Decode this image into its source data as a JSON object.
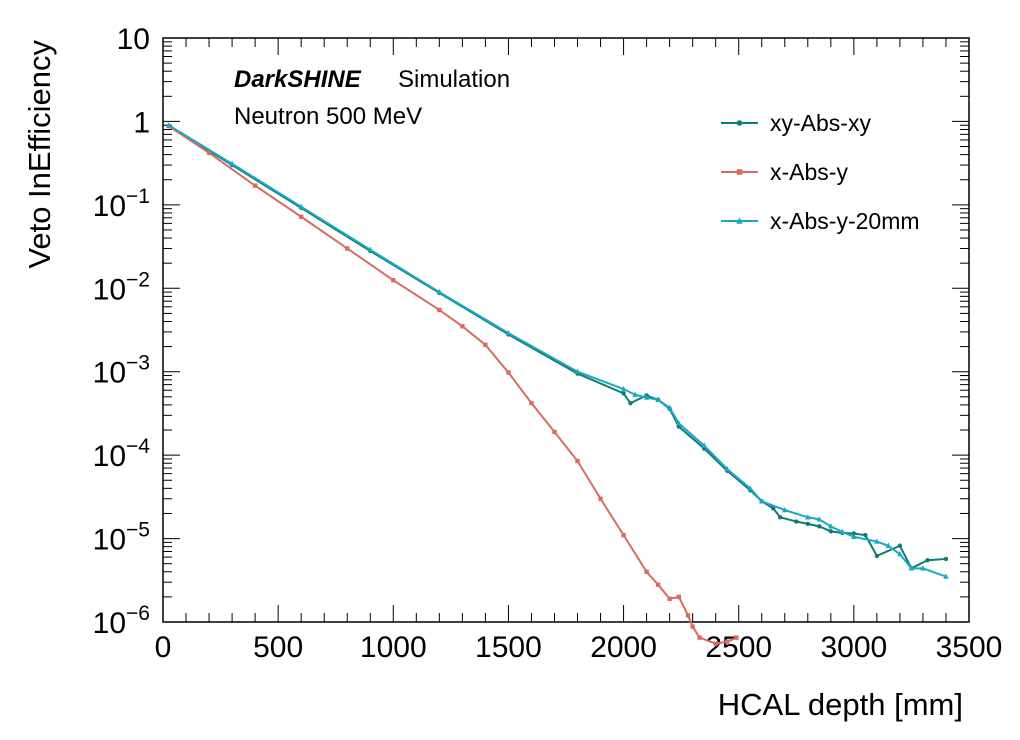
{
  "chart_data": {
    "type": "line",
    "xlabel": "HCAL depth [mm]",
    "ylabel": "Veto InEfficiency",
    "xlim": [
      0,
      3500
    ],
    "ylim": [
      1e-06,
      10
    ],
    "yscale": "log",
    "grid": false,
    "legend_position": "top-right",
    "x_ticks": [
      "0",
      "500",
      "1000",
      "1500",
      "2000",
      "2500",
      "3000",
      "3500"
    ],
    "y_ticks": [
      {
        "base": "10",
        "exp": "",
        "value": 10
      },
      {
        "base": "1",
        "exp": "",
        "value": 1
      },
      {
        "base": "10",
        "exp": "−1",
        "value": 0.1
      },
      {
        "base": "10",
        "exp": "−2",
        "value": 0.01
      },
      {
        "base": "10",
        "exp": "−3",
        "value": 0.001
      },
      {
        "base": "10",
        "exp": "−4",
        "value": 0.0001
      },
      {
        "base": "10",
        "exp": "−5",
        "value": 1e-05
      },
      {
        "base": "10",
        "exp": "−6",
        "value": 1e-06
      }
    ],
    "annotations": {
      "brand": "DarkSHINE",
      "brand_suffix": "Simulation",
      "subtitle": "Neutron 500 MeV"
    },
    "series": [
      {
        "name": "xy-Abs-xy",
        "color": "#0f7b78",
        "marker": "circle",
        "x": [
          25,
          300,
          600,
          900,
          1200,
          1500,
          1800,
          2000,
          2030,
          2100,
          2150,
          2200,
          2240,
          2350,
          2450,
          2550,
          2600,
          2650,
          2680,
          2750,
          2800,
          2850,
          2900,
          2950,
          3000,
          3050,
          3100,
          3200,
          3250,
          3320,
          3400
        ],
        "y": [
          0.88,
          0.3,
          0.092,
          0.028,
          0.0088,
          0.0028,
          0.00095,
          0.00055,
          0.00042,
          0.00052,
          0.00046,
          0.00036,
          0.00022,
          0.00012,
          6.5e-05,
          3.8e-05,
          2.8e-05,
          2.3e-05,
          1.8e-05,
          1.6e-05,
          1.5e-05,
          1.4e-05,
          1.22e-05,
          1.17e-05,
          1.15e-05,
          1.1e-05,
          6.2e-06,
          8.2e-06,
          4.4e-06,
          5.5e-06,
          5.7e-06
        ]
      },
      {
        "name": "x-Abs-y",
        "color": "#d96b63",
        "marker": "square",
        "x": [
          25,
          200,
          400,
          600,
          800,
          1000,
          1200,
          1300,
          1400,
          1500,
          1600,
          1700,
          1800,
          1900,
          2000,
          2100,
          2150,
          2200,
          2240,
          2280,
          2300,
          2330,
          2400,
          2450,
          2490
        ],
        "y": [
          0.88,
          0.42,
          0.17,
          0.072,
          0.03,
          0.0125,
          0.0055,
          0.0035,
          0.0021,
          0.00098,
          0.00042,
          0.00019,
          8.5e-05,
          3e-05,
          1.1e-05,
          4e-06,
          2.8e-06,
          1.9e-06,
          2e-06,
          1.2e-06,
          8.8e-07,
          6.5e-07,
          5.5e-07,
          5.8e-07,
          6.5e-07
        ]
      },
      {
        "name": "x-Abs-y-20mm",
        "color": "#1aa8c4",
        "marker": "triangle",
        "x": [
          25,
          300,
          600,
          900,
          1200,
          1500,
          1800,
          2000,
          2050,
          2100,
          2150,
          2200,
          2240,
          2350,
          2450,
          2550,
          2600,
          2700,
          2800,
          2850,
          2900,
          2950,
          3000,
          3100,
          3150,
          3200,
          3250,
          3300,
          3400
        ],
        "y": [
          0.9,
          0.31,
          0.095,
          0.029,
          0.009,
          0.0029,
          0.001,
          0.00062,
          0.00053,
          0.00049,
          0.00046,
          0.00037,
          0.00024,
          0.00013,
          6.8e-05,
          4e-05,
          2.8e-05,
          2.2e-05,
          1.8e-05,
          1.7e-05,
          1.4e-05,
          1.2e-05,
          1.05e-05,
          9.2e-06,
          8.2e-06,
          6.5e-06,
          4.4e-06,
          4.4e-06,
          3.5e-06
        ]
      }
    ]
  }
}
